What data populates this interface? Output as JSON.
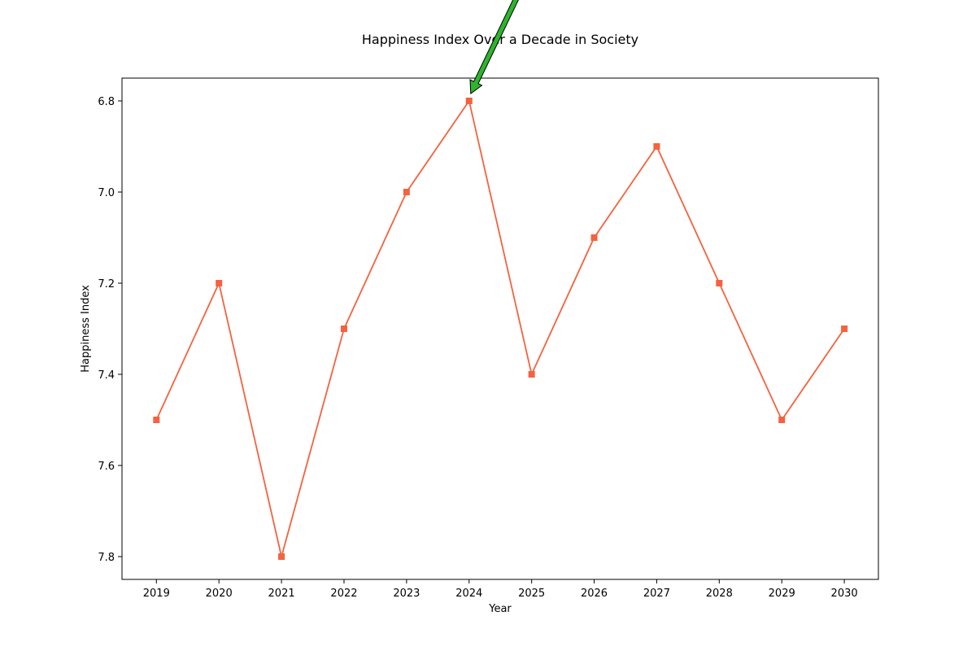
{
  "chart_data": {
    "type": "line",
    "title": "Happiness Index Over a Decade in Society",
    "xlabel": "Year",
    "ylabel": "Happiness Index",
    "categories": [
      "2019",
      "2020",
      "2021",
      "2022",
      "2023",
      "2024",
      "2025",
      "2026",
      "2027",
      "2028",
      "2029",
      "2030"
    ],
    "series": [
      {
        "values": [
          7.5,
          7.2,
          7.8,
          7.3,
          7.0,
          6.8,
          7.4,
          7.1,
          6.9,
          7.2,
          7.5,
          7.3
        ],
        "color": "#f4623f",
        "marker": "square"
      }
    ],
    "y_ticks": [
      "6.8",
      "7.0",
      "7.2",
      "7.4",
      "7.6",
      "7.8"
    ],
    "ylim": [
      6.75,
      7.85
    ],
    "y_inverted": true,
    "grid": false,
    "annotation": {
      "type": "arrow",
      "target_category": "2024",
      "target_value": 6.8,
      "color": "#2db52d"
    }
  }
}
